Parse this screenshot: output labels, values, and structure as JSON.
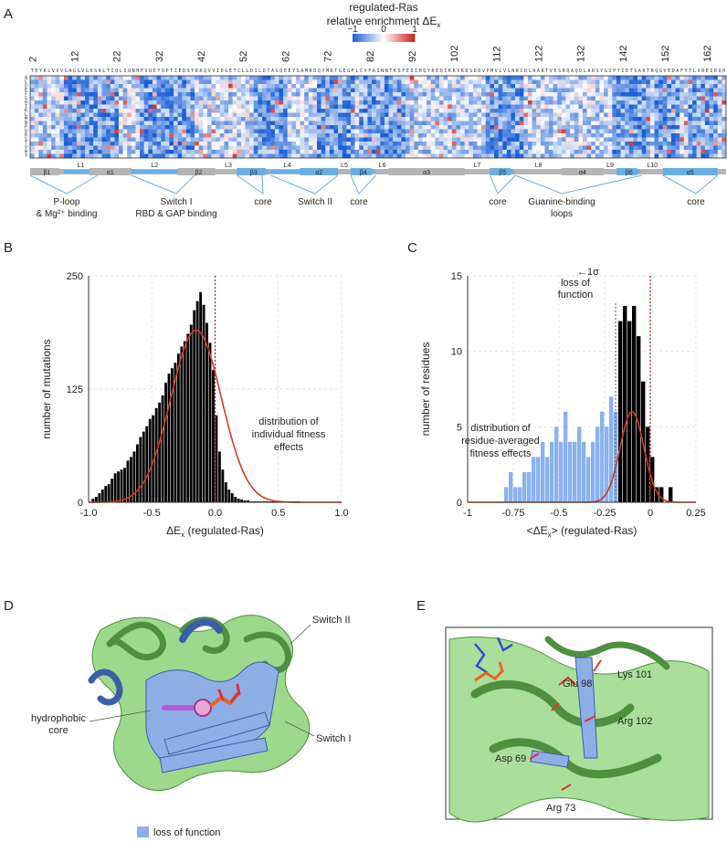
{
  "panels": {
    "A": {
      "letter": "A",
      "title_line1": "regulated-Ras",
      "title_line2": "relative enrichment ΔE",
      "title_sub": "x",
      "colorbar_ticks": [
        "−1",
        "0",
        "1"
      ],
      "position_labels": [
        "2",
        "12",
        "22",
        "32",
        "42",
        "52",
        "62",
        "72",
        "82",
        "92",
        "102",
        "112",
        "122",
        "132",
        "142",
        "152",
        "162"
      ],
      "sequence": "TEYKLVVVGAGGVGKSALTIQLIQNHFVDEYDPTIEDSYRKQVVIDGETCLLDILDTAGQEEYSAMRDQYMRTGEGFLCVFAINNTKSFEDIHQYREQIKRVKDSDDVPMVLVGNKCDLAARTVESRQAQDLARSYGIPYIETSAKTRQGVEDAFYTLVREIRQH",
      "residue_labels": "ACDEFGHIKLMNPQRSTVWY",
      "secondary_structure": [
        "β1",
        "L1",
        "α1",
        "L2",
        "β2",
        "L3",
        "β3",
        "L4",
        "α2",
        "L5",
        "β4",
        "L6",
        "α3",
        "L7",
        "β5",
        "L8",
        "α4",
        "L9",
        "β6",
        "L10",
        "α5"
      ],
      "region_labels": [
        {
          "line1": "P-loop",
          "line2": "& Mg²⁺ binding"
        },
        {
          "line1": "Switch I",
          "line2": "RBD & GAP binding"
        },
        {
          "line1": "core",
          "line2": ""
        },
        {
          "line1": "Switch II",
          "line2": ""
        },
        {
          "line1": "core",
          "line2": ""
        },
        {
          "line1": "core",
          "line2": ""
        },
        {
          "line1": "Guanine-binding",
          "line2": "loops"
        },
        {
          "line1": "core",
          "line2": ""
        }
      ],
      "colors": {
        "negative": "#1a5fd6",
        "neutral": "#ffffff",
        "positive": "#d01c1c",
        "structure": "#b5b5b5",
        "highlight": "#6aaee8"
      }
    },
    "B": {
      "letter": "B",
      "annotation": [
        "distribution of",
        "individual fitness",
        "effects"
      ]
    },
    "C": {
      "letter": "C",
      "sigma_label": "←1σ",
      "loss_label": [
        "loss of",
        "function"
      ],
      "annotation": [
        "distribution of",
        "residue-averaged",
        "fitness effects"
      ]
    },
    "D": {
      "letter": "D",
      "labels": {
        "switch2": "Switch II",
        "switch1": "Switch I",
        "core": [
          "hydrophobic",
          "core"
        ]
      },
      "legend": "loss of function",
      "colors": {
        "ribbon": "#9dd98c",
        "loss": "#8eaee6"
      }
    },
    "E": {
      "letter": "E",
      "residues": [
        "Glu 98",
        "Lys 101",
        "Arg 102",
        "Asp 69",
        "Arg 73"
      ]
    }
  },
  "chart_data": [
    {
      "type": "bar",
      "panel": "B",
      "xlabel": "ΔE",
      "xlabel_sub": "x",
      "xlabel_suffix": " (regulated-Ras)",
      "ylabel": "number of mutations",
      "xlim": [
        -1.0,
        1.0
      ],
      "ylim": [
        0,
        250
      ],
      "xticks": [
        "-1.0",
        "-0.5",
        "0.0",
        "0.5",
        "1.0"
      ],
      "yticks": [
        "0",
        "125",
        "250"
      ],
      "bin_width": 0.025,
      "bin_starts": [
        -0.975,
        -0.95,
        -0.925,
        -0.9,
        -0.875,
        -0.85,
        -0.825,
        -0.8,
        -0.775,
        -0.75,
        -0.725,
        -0.7,
        -0.675,
        -0.65,
        -0.625,
        -0.6,
        -0.575,
        -0.55,
        -0.525,
        -0.5,
        -0.475,
        -0.45,
        -0.425,
        -0.4,
        -0.375,
        -0.35,
        -0.325,
        -0.3,
        -0.275,
        -0.25,
        -0.225,
        -0.2,
        -0.175,
        -0.15,
        -0.125,
        -0.1,
        -0.075,
        -0.05,
        -0.025,
        0.0,
        0.025,
        0.05,
        0.075,
        0.1,
        0.125,
        0.15,
        0.175,
        0.2,
        0.225,
        0.25,
        0.275,
        0.3,
        0.325,
        0.35,
        0.375,
        0.4,
        0.425,
        0.45,
        0.475,
        0.5,
        0.525,
        0.55,
        0.575,
        0.6,
        0.625,
        0.65
      ],
      "values": [
        4,
        6,
        10,
        14,
        18,
        20,
        26,
        32,
        34,
        36,
        38,
        46,
        50,
        56,
        64,
        72,
        78,
        84,
        92,
        96,
        104,
        110,
        118,
        132,
        142,
        148,
        154,
        164,
        172,
        178,
        186,
        196,
        212,
        222,
        232,
        218,
        198,
        176,
        146,
        96,
        56,
        36,
        22,
        14,
        10,
        6,
        4,
        3,
        2,
        2,
        1,
        1,
        1,
        1,
        1,
        1,
        1,
        1,
        1,
        1,
        1,
        1,
        1,
        1,
        1,
        1
      ],
      "fit_curve": {
        "type": "gaussian",
        "mean": -0.15,
        "sd": 0.2,
        "peak": 190,
        "color": "#d63a1f"
      },
      "reference_line": 0.0
    },
    {
      "type": "bar",
      "panel": "C",
      "xlabel": "<ΔE",
      "xlabel_sub": "x",
      "xlabel_suffix": "> (regulated-Ras)",
      "ylabel": "number of residues",
      "xlim": [
        -1,
        0.25
      ],
      "ylim": [
        0,
        15
      ],
      "xticks": [
        "-1",
        "-0.75",
        "-0.5",
        "-0.25",
        "0",
        "0.25"
      ],
      "yticks": [
        "0",
        "5",
        "10",
        "15"
      ],
      "bin_width": 0.025,
      "loss_of_function_threshold": -0.19,
      "bin_starts": [
        -0.8,
        -0.775,
        -0.75,
        -0.725,
        -0.7,
        -0.675,
        -0.65,
        -0.625,
        -0.6,
        -0.575,
        -0.55,
        -0.525,
        -0.5,
        -0.475,
        -0.45,
        -0.425,
        -0.4,
        -0.375,
        -0.35,
        -0.325,
        -0.3,
        -0.275,
        -0.25,
        -0.225,
        -0.2,
        -0.175,
        -0.15,
        -0.125,
        -0.1,
        -0.075,
        -0.05,
        -0.025,
        0.0,
        0.025,
        0.05,
        0.075,
        0.1
      ],
      "values": [
        1,
        2,
        1,
        1,
        2,
        2,
        3,
        3,
        4,
        3,
        4,
        5,
        4,
        6,
        4,
        4,
        5,
        4,
        3,
        4,
        5,
        6,
        5,
        7,
        6,
        12,
        13,
        12,
        13,
        11,
        8,
        5,
        3,
        1,
        1,
        0,
        1
      ],
      "colors": {
        "loss": "#8ab2f0",
        "normal": "#000000"
      },
      "fit_curve": {
        "type": "gaussian",
        "mean": -0.1,
        "sd": 0.065,
        "peak": 6,
        "color": "#d63a1f"
      },
      "reference_line": 0.0,
      "sigma_line": -0.19
    },
    {
      "type": "heatmap",
      "panel": "A",
      "x": "residue position 2–166",
      "y": "amino acid substitution",
      "colorbar_range": [
        -1,
        1
      ]
    }
  ]
}
